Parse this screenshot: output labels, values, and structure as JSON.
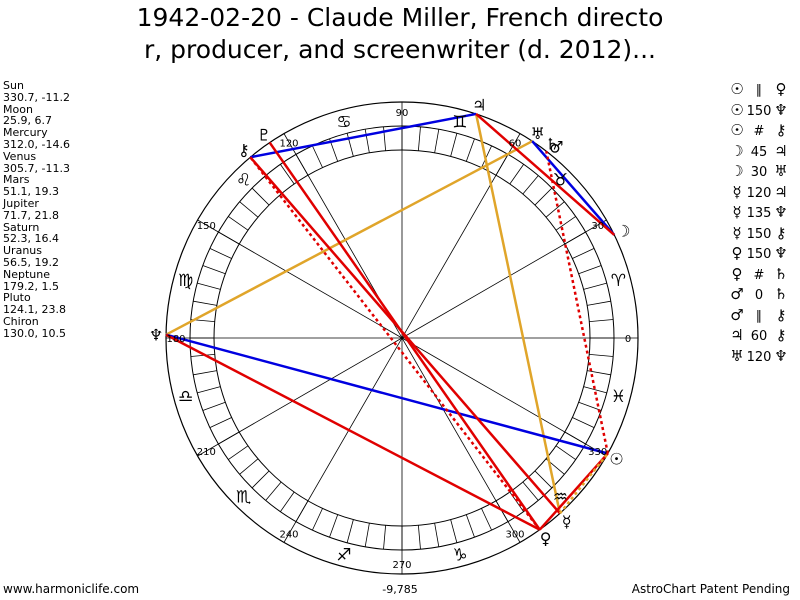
{
  "title_line1": "1942-02-20 - Claude Miller, French directo",
  "title_line2": "r, producer, and screenwriter (d. 2012)...",
  "positions": [
    {
      "name": "Sun",
      "value": "330.7, -11.2"
    },
    {
      "name": "Moon",
      "value": "25.9, 6.7"
    },
    {
      "name": "Mercury",
      "value": "312.0, -14.6"
    },
    {
      "name": "Venus",
      "value": "305.7, -11.3"
    },
    {
      "name": "Mars",
      "value": "51.1, 19.3"
    },
    {
      "name": "Jupiter",
      "value": "71.7, 21.8"
    },
    {
      "name": "Saturn",
      "value": "52.3, 16.4"
    },
    {
      "name": "Uranus",
      "value": "56.5, 19.2"
    },
    {
      "name": "Neptune",
      "value": "179.2, 1.5"
    },
    {
      "name": "Pluto",
      "value": "124.1, 23.8"
    },
    {
      "name": "Chiron",
      "value": "130.0, 10.5"
    }
  ],
  "aspects": [
    {
      "p1": "☉",
      "a": "∥",
      "p2": "♀"
    },
    {
      "p1": "☉",
      "a": "150",
      "p2": "♆"
    },
    {
      "p1": "☉",
      "a": "#",
      "p2": "⚷"
    },
    {
      "p1": "☽",
      "a": "45",
      "p2": "♃"
    },
    {
      "p1": "☽",
      "a": "30",
      "p2": "♅"
    },
    {
      "p1": "☿",
      "a": "120",
      "p2": "♃"
    },
    {
      "p1": "☿",
      "a": "135",
      "p2": "♆"
    },
    {
      "p1": "☿",
      "a": "150",
      "p2": "⚷"
    },
    {
      "p1": "♀",
      "a": "150",
      "p2": "♆"
    },
    {
      "p1": "♀",
      "a": "#",
      "p2": "♄"
    },
    {
      "p1": "♂",
      "a": "0",
      "p2": "♄"
    },
    {
      "p1": "♂",
      "a": "∥",
      "p2": "⚷"
    },
    {
      "p1": "♃",
      "a": "60",
      "p2": "⚷"
    },
    {
      "p1": "♅",
      "a": "120",
      "p2": "♆"
    }
  ],
  "degree_labels": [
    {
      "deg": 0,
      "text": "0"
    },
    {
      "deg": 30,
      "text": "30"
    },
    {
      "deg": 60,
      "text": "60"
    },
    {
      "deg": 90,
      "text": "90"
    },
    {
      "deg": 120,
      "text": "120"
    },
    {
      "deg": 150,
      "text": "150"
    },
    {
      "deg": 180,
      "text": "180"
    },
    {
      "deg": 210,
      "text": "210"
    },
    {
      "deg": 240,
      "text": "240"
    },
    {
      "deg": 270,
      "text": "270"
    },
    {
      "deg": 300,
      "text": "300"
    },
    {
      "deg": 330,
      "text": "330"
    }
  ],
  "signs": [
    {
      "glyph": "♈",
      "deg": 15
    },
    {
      "glyph": "♉",
      "deg": 45
    },
    {
      "glyph": "♊",
      "deg": 75
    },
    {
      "glyph": "♋",
      "deg": 105
    },
    {
      "glyph": "♌",
      "deg": 135
    },
    {
      "glyph": "♍",
      "deg": 165
    },
    {
      "glyph": "♎",
      "deg": 195
    },
    {
      "glyph": "♏",
      "deg": 225
    },
    {
      "glyph": "♐",
      "deg": 255
    },
    {
      "glyph": "♑",
      "deg": 285
    },
    {
      "glyph": "♒",
      "deg": 315
    },
    {
      "glyph": "♓",
      "deg": 345
    }
  ],
  "planets": [
    {
      "glyph": "☉",
      "deg": 330.7
    },
    {
      "glyph": "☽",
      "deg": 25.9
    },
    {
      "glyph": "☿",
      "deg": 312.0
    },
    {
      "glyph": "♀",
      "deg": 305.7
    },
    {
      "glyph": "♂",
      "deg": 51.1
    },
    {
      "glyph": "♃",
      "deg": 71.7
    },
    {
      "glyph": "♄",
      "deg": 52.3
    },
    {
      "glyph": "♅",
      "deg": 56.5
    },
    {
      "glyph": "♆",
      "deg": 179.2
    },
    {
      "glyph": "♇",
      "deg": 124.1
    },
    {
      "glyph": "⚷",
      "deg": 130.0
    }
  ],
  "aspect_lines": [
    {
      "a": 312.0,
      "b": 71.7,
      "color": "#e0a52a",
      "style": "solid"
    },
    {
      "a": 179.2,
      "b": 56.5,
      "color": "#e0a52a",
      "style": "solid"
    },
    {
      "a": 71.7,
      "b": 130.0,
      "color": "#0000e0",
      "style": "solid"
    },
    {
      "a": 25.9,
      "b": 56.5,
      "color": "#0000e0",
      "style": "solid"
    },
    {
      "a": 330.7,
      "b": 179.2,
      "color": "#0000e0",
      "style": "solid"
    },
    {
      "a": 305.7,
      "b": 179.2,
      "color": "#e00000",
      "style": "solid"
    },
    {
      "a": 330.7,
      "b": 305.7,
      "color": "#e00000",
      "style": "solid"
    },
    {
      "a": 25.9,
      "b": 71.7,
      "color": "#e00000",
      "style": "solid"
    },
    {
      "a": 312.0,
      "b": 130.0,
      "color": "#e00000",
      "style": "solid"
    },
    {
      "a": 305.7,
      "b": 124.1,
      "color": "#e00000",
      "style": "solid"
    },
    {
      "a": 330.7,
      "b": 52.3,
      "color": "#e00000",
      "style": "dotted"
    },
    {
      "a": 305.7,
      "b": 130.0,
      "color": "#e00000",
      "style": "dotted"
    },
    {
      "a": 312.0,
      "b": 330.7,
      "color": "#e0a52a",
      "style": "dotted"
    }
  ],
  "footer_left": "www.harmoniclife.com",
  "footer_center": "-9,785",
  "footer_right": "AstroChart Patent Pending"
}
